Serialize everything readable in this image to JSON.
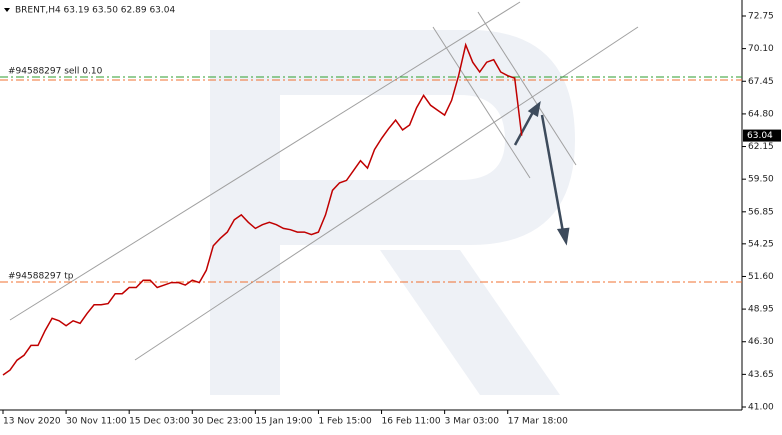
{
  "chart_data": {
    "type": "line",
    "title": "BRENT,H4  63.19 63.50 62.89 63.04",
    "categories": [
      "13 Nov 2020",
      null,
      null,
      null,
      null,
      null,
      null,
      null,
      null,
      "30 Nov 11:00",
      null,
      null,
      null,
      null,
      null,
      null,
      null,
      null,
      "15 Dec 03:00",
      null,
      null,
      null,
      null,
      null,
      null,
      null,
      null,
      "30 Dec 23:00",
      null,
      null,
      null,
      null,
      null,
      null,
      null,
      null,
      "15 Jan 19:00",
      null,
      null,
      null,
      null,
      null,
      null,
      null,
      null,
      "1 Feb 15:00",
      null,
      null,
      null,
      null,
      null,
      null,
      null,
      null,
      "16 Feb 11:00",
      null,
      null,
      null,
      null,
      null,
      null,
      null,
      null,
      "3 Mar 03:00",
      null,
      null,
      null,
      null,
      null,
      null,
      null,
      null,
      "17 Mar 18:00",
      null,
      null
    ],
    "series": [
      {
        "name": "BRENT,H4",
        "color": "#c00000",
        "values": [
          43.6,
          44.0,
          44.8,
          45.2,
          46.0,
          46.0,
          47.2,
          48.2,
          48.0,
          47.6,
          48.0,
          47.8,
          48.6,
          49.3,
          49.3,
          49.4,
          50.2,
          50.2,
          50.7,
          50.7,
          51.3,
          51.3,
          50.7,
          50.9,
          51.1,
          51.1,
          50.9,
          51.3,
          51.1,
          52.1,
          54.1,
          54.7,
          55.2,
          56.2,
          56.6,
          56.0,
          55.5,
          55.8,
          56.0,
          55.8,
          55.5,
          55.4,
          55.2,
          55.2,
          55.0,
          55.2,
          56.6,
          58.6,
          59.2,
          59.4,
          60.2,
          61.0,
          60.4,
          61.9,
          62.8,
          63.6,
          64.3,
          63.5,
          63.9,
          65.3,
          66.3,
          65.5,
          65.1,
          64.7,
          65.9,
          67.9,
          70.4,
          69.0,
          68.2,
          69.0,
          69.2,
          68.2,
          67.9,
          67.7,
          63.04
        ]
      }
    ],
    "ylim": [
      41.0,
      72.75
    ],
    "yticks": [
      72.75,
      {
        "value": 70.1,
        "label": "70.10"
      },
      67.45,
      {
        "value": 64.8,
        "label": "64.80"
      },
      62.15,
      {
        "value": 59.5,
        "label": "59.50"
      },
      56.85,
      54.25,
      {
        "value": 51.6,
        "label": "51.60"
      },
      48.95,
      {
        "value": 46.3,
        "label": "46.30"
      },
      43.65,
      {
        "value": 41.0,
        "label": "41.00"
      }
    ],
    "grid": false,
    "current_price": 63.04,
    "levels": [
      {
        "label": "#94588297 sell 0.10",
        "value": 67.8,
        "color": "#2e9e2e"
      },
      {
        "value": 67.55,
        "color": "#f07030"
      },
      {
        "label": "#94588297 tp",
        "value": 51.15,
        "color": "#f07030"
      }
    ]
  }
}
